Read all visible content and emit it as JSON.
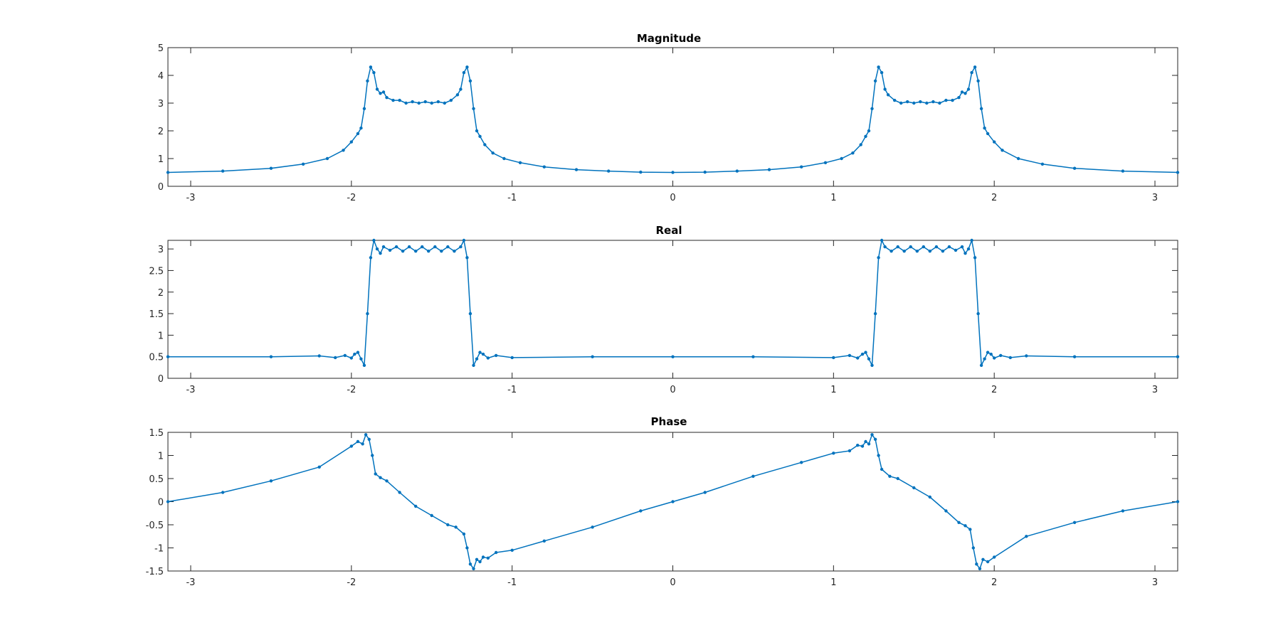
{
  "figure": {
    "colors": {
      "series": "#0072BD",
      "axes": "#262626",
      "background": "#ffffff"
    },
    "marker": "dot"
  },
  "chart_data": [
    {
      "type": "line",
      "title": "Magnitude",
      "xlabel": "",
      "ylabel": "",
      "xlim": [
        -3.1416,
        3.1416
      ],
      "ylim": [
        0,
        5
      ],
      "xticks": [
        -3,
        -2,
        -1,
        0,
        1,
        2,
        3
      ],
      "xtick_labels": [
        "-3",
        "-2",
        "-1",
        "0",
        "1",
        "2",
        "3"
      ],
      "yticks": [
        0,
        1,
        2,
        3,
        4,
        5
      ],
      "ytick_labels": [
        "0",
        "1",
        "2",
        "3",
        "4",
        "5"
      ],
      "grid": false,
      "series": [
        {
          "x": [
            -3.1416,
            -2.8,
            -2.5,
            -2.3,
            -2.15,
            -2.05,
            -2.0,
            -1.96,
            -1.94,
            -1.92,
            -1.9,
            -1.88,
            -1.86,
            -1.84,
            -1.82,
            -1.8,
            -1.78,
            -1.74,
            -1.7,
            -1.66,
            -1.62,
            -1.58,
            -1.54,
            -1.5,
            -1.46,
            -1.42,
            -1.38,
            -1.34,
            -1.32,
            -1.3,
            -1.28,
            -1.26,
            -1.24,
            -1.22,
            -1.2,
            -1.17,
            -1.12,
            -1.05,
            -0.95,
            -0.8,
            -0.6,
            -0.4,
            -0.2,
            0,
            0.2,
            0.4,
            0.6,
            0.8,
            0.95,
            1.05,
            1.12,
            1.17,
            1.2,
            1.22,
            1.24,
            1.26,
            1.28,
            1.3,
            1.32,
            1.34,
            1.38,
            1.42,
            1.46,
            1.5,
            1.54,
            1.58,
            1.62,
            1.66,
            1.7,
            1.74,
            1.78,
            1.8,
            1.82,
            1.84,
            1.86,
            1.88,
            1.9,
            1.92,
            1.94,
            1.96,
            2.0,
            2.05,
            2.15,
            2.3,
            2.5,
            2.8,
            3.1416
          ],
          "y": [
            0.5,
            0.55,
            0.65,
            0.8,
            1.0,
            1.3,
            1.6,
            1.9,
            2.1,
            2.8,
            3.8,
            4.3,
            4.1,
            3.5,
            3.35,
            3.4,
            3.2,
            3.1,
            3.1,
            3.0,
            3.05,
            3.0,
            3.05,
            3.0,
            3.05,
            3.0,
            3.1,
            3.3,
            3.5,
            4.1,
            4.3,
            3.8,
            2.8,
            2.0,
            1.8,
            1.5,
            1.2,
            1.0,
            0.85,
            0.7,
            0.6,
            0.55,
            0.51,
            0.5,
            0.51,
            0.55,
            0.6,
            0.7,
            0.85,
            1.0,
            1.2,
            1.5,
            1.8,
            2.0,
            2.8,
            3.8,
            4.3,
            4.1,
            3.5,
            3.3,
            3.1,
            3.0,
            3.05,
            3.0,
            3.05,
            3.0,
            3.05,
            3.0,
            3.1,
            3.1,
            3.2,
            3.4,
            3.35,
            3.5,
            4.1,
            4.3,
            3.8,
            2.8,
            2.1,
            1.9,
            1.6,
            1.3,
            1.0,
            0.8,
            0.65,
            0.55,
            0.5
          ]
        }
      ]
    },
    {
      "type": "line",
      "title": "Real",
      "xlabel": "",
      "ylabel": "",
      "xlim": [
        -3.1416,
        3.1416
      ],
      "ylim": [
        0,
        3.2
      ],
      "xticks": [
        -3,
        -2,
        -1,
        0,
        1,
        2,
        3
      ],
      "xtick_labels": [
        "-3",
        "-2",
        "-1",
        "0",
        "1",
        "2",
        "3"
      ],
      "yticks": [
        0,
        0.5,
        1,
        1.5,
        2,
        2.5,
        3
      ],
      "ytick_labels": [
        "0",
        "0.5",
        "1",
        "1.5",
        "2",
        "2.5",
        "3"
      ],
      "grid": false,
      "series": [
        {
          "x": [
            -3.1416,
            -2.5,
            -2.2,
            -2.1,
            -2.04,
            -2.0,
            -1.98,
            -1.96,
            -1.94,
            -1.92,
            -1.9,
            -1.88,
            -1.86,
            -1.84,
            -1.82,
            -1.8,
            -1.76,
            -1.72,
            -1.68,
            -1.64,
            -1.6,
            -1.56,
            -1.52,
            -1.48,
            -1.44,
            -1.4,
            -1.36,
            -1.32,
            -1.3,
            -1.28,
            -1.26,
            -1.24,
            -1.22,
            -1.2,
            -1.18,
            -1.15,
            -1.1,
            -1.0,
            -0.5,
            0,
            0.5,
            1.0,
            1.1,
            1.15,
            1.18,
            1.2,
            1.22,
            1.24,
            1.26,
            1.28,
            1.3,
            1.32,
            1.36,
            1.4,
            1.44,
            1.48,
            1.52,
            1.56,
            1.6,
            1.64,
            1.68,
            1.72,
            1.76,
            1.8,
            1.82,
            1.84,
            1.86,
            1.88,
            1.9,
            1.92,
            1.94,
            1.96,
            1.98,
            2.0,
            2.04,
            2.1,
            2.2,
            2.5,
            3.1416
          ],
          "y": [
            0.5,
            0.5,
            0.52,
            0.48,
            0.53,
            0.47,
            0.56,
            0.6,
            0.45,
            0.3,
            1.5,
            2.8,
            3.2,
            3.0,
            2.9,
            3.05,
            2.97,
            3.05,
            2.95,
            3.05,
            2.95,
            3.05,
            2.95,
            3.05,
            2.95,
            3.05,
            2.95,
            3.05,
            3.2,
            2.8,
            1.5,
            0.3,
            0.45,
            0.6,
            0.56,
            0.47,
            0.53,
            0.48,
            0.5,
            0.5,
            0.5,
            0.48,
            0.53,
            0.47,
            0.56,
            0.6,
            0.45,
            0.3,
            1.5,
            2.8,
            3.2,
            3.05,
            2.95,
            3.05,
            2.95,
            3.05,
            2.95,
            3.05,
            2.95,
            3.05,
            2.95,
            3.05,
            2.97,
            3.05,
            2.9,
            3.0,
            3.2,
            2.8,
            1.5,
            0.3,
            0.45,
            0.6,
            0.56,
            0.47,
            0.53,
            0.48,
            0.52,
            0.5,
            0.5
          ]
        }
      ]
    },
    {
      "type": "line",
      "title": "Phase",
      "xlabel": "",
      "ylabel": "",
      "xlim": [
        -3.1416,
        3.1416
      ],
      "ylim": [
        -1.5,
        1.5
      ],
      "xticks": [
        -3,
        -2,
        -1,
        0,
        1,
        2,
        3
      ],
      "xtick_labels": [
        "-3",
        "-2",
        "-1",
        "0",
        "1",
        "2",
        "3"
      ],
      "yticks": [
        -1.5,
        -1,
        -0.5,
        0,
        0.5,
        1,
        1.5
      ],
      "ytick_labels": [
        "-1.5",
        "-1",
        "-0.5",
        "0",
        "0.5",
        "1",
        "1.5"
      ],
      "grid": false,
      "series": [
        {
          "x": [
            -3.1416,
            -2.8,
            -2.5,
            -2.2,
            -2.0,
            -1.96,
            -1.93,
            -1.91,
            -1.89,
            -1.87,
            -1.85,
            -1.82,
            -1.78,
            -1.7,
            -1.6,
            -1.5,
            -1.4,
            -1.35,
            -1.3,
            -1.28,
            -1.26,
            -1.24,
            -1.22,
            -1.2,
            -1.18,
            -1.15,
            -1.1,
            -1.0,
            -0.8,
            -0.5,
            -0.2,
            0,
            0.2,
            0.5,
            0.8,
            1.0,
            1.1,
            1.15,
            1.18,
            1.2,
            1.22,
            1.24,
            1.26,
            1.28,
            1.3,
            1.35,
            1.4,
            1.5,
            1.6,
            1.7,
            1.78,
            1.82,
            1.85,
            1.87,
            1.89,
            1.91,
            1.93,
            1.96,
            2.0,
            2.2,
            2.5,
            2.8,
            3.1416
          ],
          "y": [
            0.0,
            0.2,
            0.45,
            0.75,
            1.2,
            1.3,
            1.25,
            1.45,
            1.35,
            1.0,
            0.6,
            0.52,
            0.45,
            0.2,
            -0.1,
            -0.3,
            -0.5,
            -0.55,
            -0.7,
            -1.0,
            -1.35,
            -1.45,
            -1.25,
            -1.3,
            -1.2,
            -1.22,
            -1.1,
            -1.05,
            -0.85,
            -0.55,
            -0.2,
            0.0,
            0.2,
            0.55,
            0.85,
            1.05,
            1.1,
            1.22,
            1.2,
            1.3,
            1.25,
            1.45,
            1.35,
            1.0,
            0.7,
            0.55,
            0.5,
            0.3,
            0.1,
            -0.2,
            -0.45,
            -0.52,
            -0.6,
            -1.0,
            -1.35,
            -1.45,
            -1.25,
            -1.3,
            -1.2,
            -0.75,
            -0.45,
            -0.2,
            0.0
          ]
        }
      ]
    }
  ]
}
